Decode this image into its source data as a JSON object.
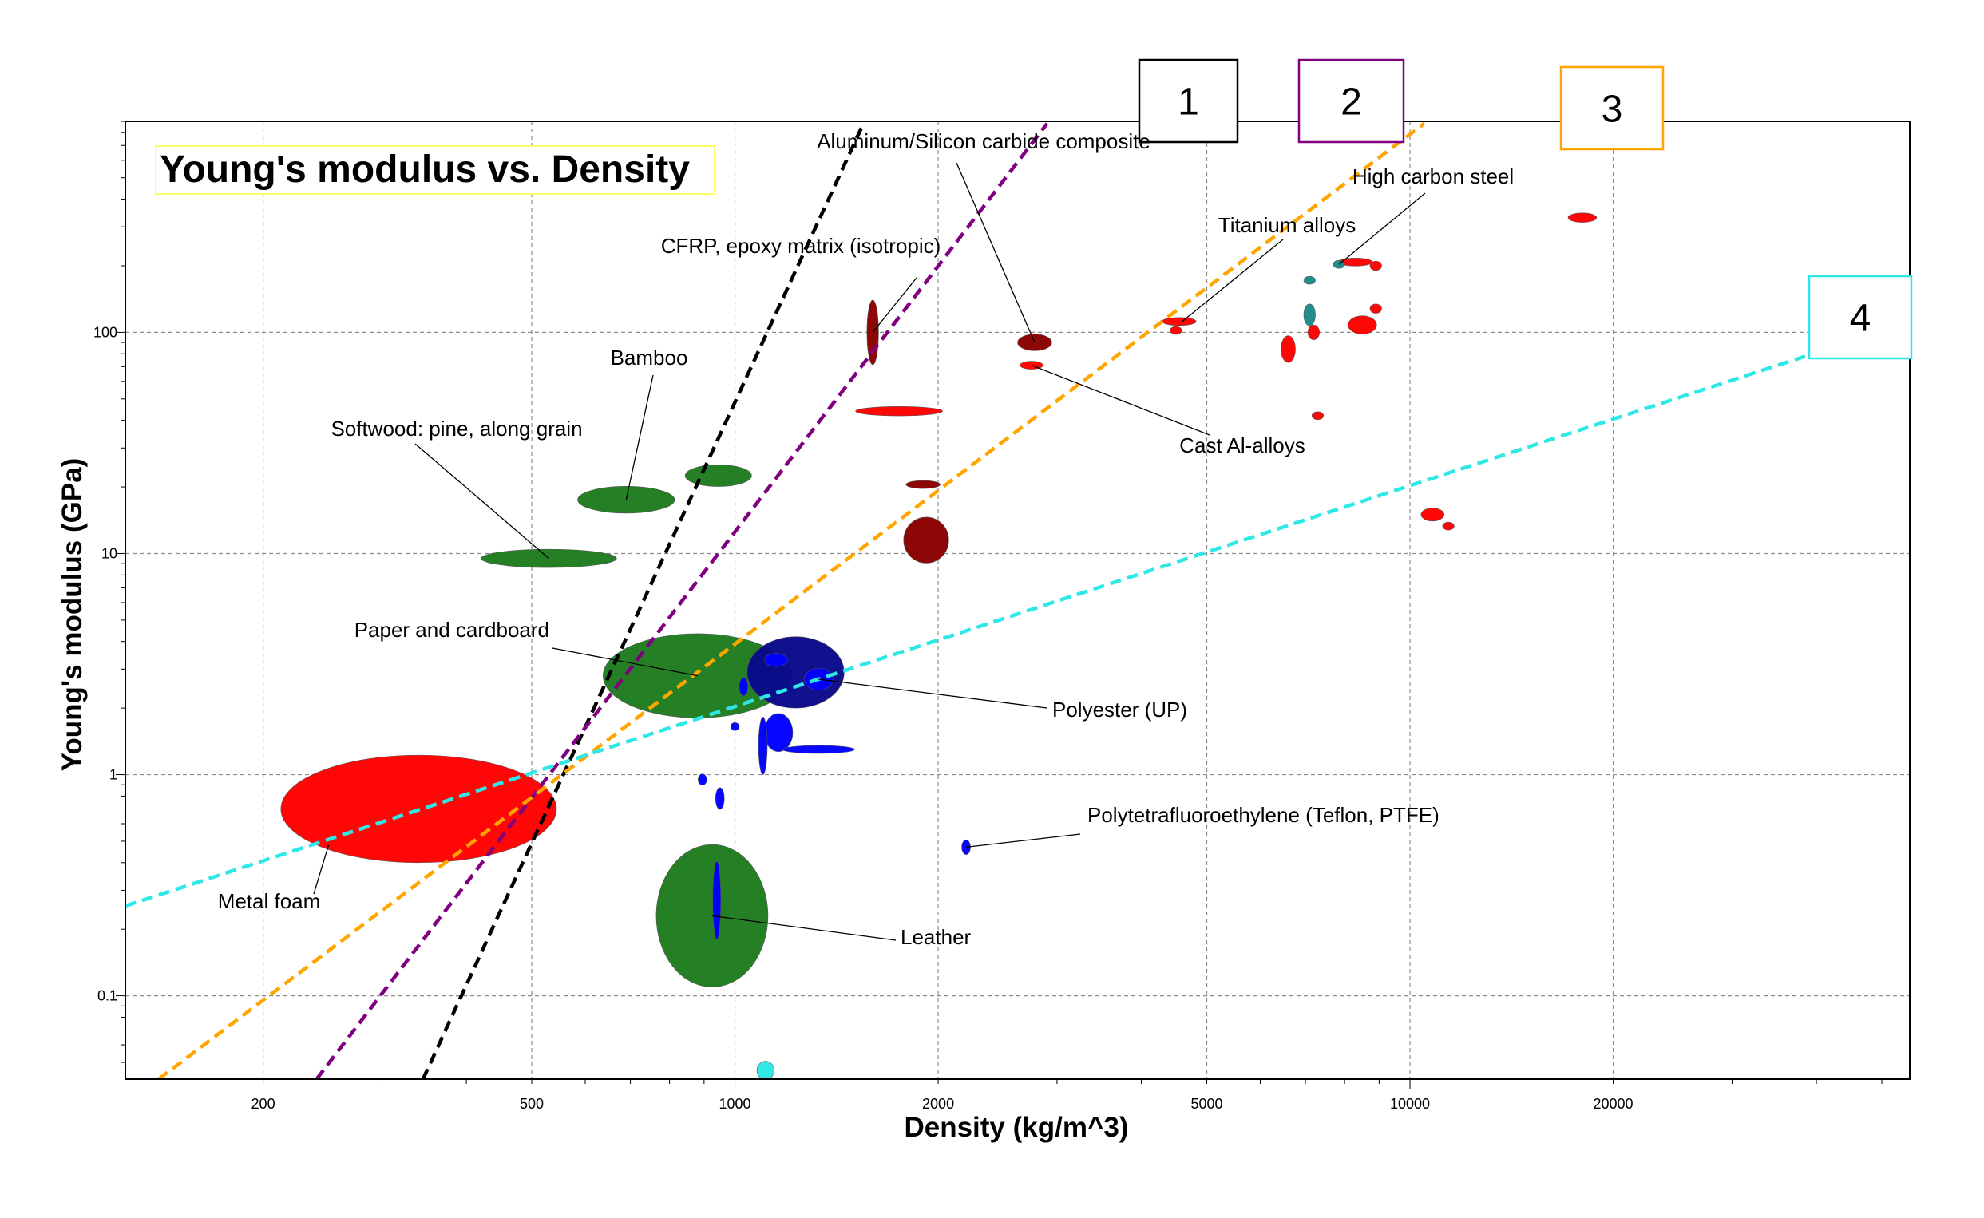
{
  "chart_data": {
    "type": "scatter",
    "title": "Young's modulus vs. Density",
    "xlabel": "Density (kg/m^3)",
    "ylabel": "Young's modulus (GPa)",
    "x_scale": "log",
    "y_scale": "log",
    "xlim": [
      125,
      55000
    ],
    "ylim": [
      0.042,
      900
    ],
    "grid": true,
    "x_ticks": [
      {
        "value": 200,
        "label": "200"
      },
      {
        "value": 500,
        "label": "500"
      },
      {
        "value": 1000,
        "label": "1000"
      },
      {
        "value": 2000,
        "label": "2000"
      },
      {
        "value": 5000,
        "label": "5000"
      },
      {
        "value": 10000,
        "label": "10000"
      },
      {
        "value": 20000,
        "label": "20000"
      }
    ],
    "y_ticks": [
      {
        "value": 0.1,
        "label": "0.1"
      },
      {
        "value": 1,
        "label": "1"
      },
      {
        "value": 10,
        "label": "10"
      },
      {
        "value": 100,
        "label": "100"
      }
    ],
    "colors": {
      "green": "#1e7b1e",
      "red": "#ff0000",
      "darkred": "#8b0000",
      "blue": "#0000ff",
      "navy": "#0a0a8c",
      "teal": "#1a8a8a",
      "cyan": "#2ee8e8"
    },
    "bubbles": [
      {
        "x": 340,
        "y": 0.7,
        "rx": 1.6,
        "ry": 1.75,
        "color": "red"
      },
      {
        "x": 530,
        "y": 9.5,
        "rx": 1.26,
        "ry": 1.1,
        "color": "green"
      },
      {
        "x": 690,
        "y": 17.5,
        "rx": 1.18,
        "ry": 1.15,
        "color": "green"
      },
      {
        "x": 945,
        "y": 22.5,
        "rx": 1.12,
        "ry": 1.12,
        "color": "green"
      },
      {
        "x": 880,
        "y": 2.8,
        "rx": 1.38,
        "ry": 1.55,
        "color": "green"
      },
      {
        "x": 925,
        "y": 0.23,
        "rx": 1.21,
        "ry": 2.1,
        "color": "green"
      },
      {
        "x": 1230,
        "y": 2.9,
        "rx": 1.18,
        "ry": 1.45,
        "color": "navy"
      },
      {
        "x": 1150,
        "y": 3.3,
        "rx": 1.04,
        "ry": 1.07,
        "color": "blue"
      },
      {
        "x": 1330,
        "y": 2.7,
        "rx": 1.05,
        "ry": 1.12,
        "color": "blue"
      },
      {
        "x": 1160,
        "y": 1.55,
        "rx": 1.05,
        "ry": 1.22,
        "color": "blue"
      },
      {
        "x": 1330,
        "y": 1.3,
        "rx": 1.13,
        "ry": 1.03,
        "color": "blue"
      },
      {
        "x": 1100,
        "y": 1.35,
        "rx": 1.015,
        "ry": 1.35,
        "color": "blue"
      },
      {
        "x": 1000,
        "y": 1.65,
        "rx": 1.015,
        "ry": 1.03,
        "color": "blue"
      },
      {
        "x": 1030,
        "y": 2.5,
        "rx": 1.015,
        "ry": 1.1,
        "color": "blue"
      },
      {
        "x": 895,
        "y": 0.95,
        "rx": 1.015,
        "ry": 1.06,
        "color": "blue"
      },
      {
        "x": 950,
        "y": 0.78,
        "rx": 1.015,
        "ry": 1.12,
        "color": "blue"
      },
      {
        "x": 940,
        "y": 0.27,
        "rx": 1.01,
        "ry": 1.5,
        "color": "blue"
      },
      {
        "x": 2200,
        "y": 0.47,
        "rx": 1.015,
        "ry": 1.08,
        "color": "blue"
      },
      {
        "x": 1110,
        "y": 0.046,
        "rx": 1.03,
        "ry": 1.1,
        "color": "cyan"
      },
      {
        "x": 1600,
        "y": 100,
        "rx": 1.02,
        "ry": 1.4,
        "color": "darkred"
      },
      {
        "x": 1750,
        "y": 44,
        "rx": 1.16,
        "ry": 1.05,
        "color": "red"
      },
      {
        "x": 1900,
        "y": 20.5,
        "rx": 1.06,
        "ry": 1.03,
        "color": "darkred"
      },
      {
        "x": 1920,
        "y": 11.5,
        "rx": 1.08,
        "ry": 1.27,
        "color": "darkred"
      },
      {
        "x": 2780,
        "y": 90,
        "rx": 1.06,
        "ry": 1.09,
        "color": "darkred"
      },
      {
        "x": 2750,
        "y": 71,
        "rx": 1.04,
        "ry": 1.04,
        "color": "red"
      },
      {
        "x": 4550,
        "y": 112,
        "rx": 1.06,
        "ry": 1.03,
        "color": "red"
      },
      {
        "x": 4500,
        "y": 102,
        "rx": 1.02,
        "ry": 1.02,
        "color": "red"
      },
      {
        "x": 6600,
        "y": 84,
        "rx": 1.025,
        "ry": 1.15,
        "color": "red"
      },
      {
        "x": 7200,
        "y": 100,
        "rx": 1.02,
        "ry": 1.08,
        "color": "red"
      },
      {
        "x": 7100,
        "y": 120,
        "rx": 1.02,
        "ry": 1.12,
        "color": "teal"
      },
      {
        "x": 7100,
        "y": 172,
        "rx": 1.02,
        "ry": 1.03,
        "color": "teal"
      },
      {
        "x": 7300,
        "y": 42,
        "rx": 1.02,
        "ry": 1.03,
        "color": "red"
      },
      {
        "x": 8500,
        "y": 108,
        "rx": 1.05,
        "ry": 1.1,
        "color": "red"
      },
      {
        "x": 8900,
        "y": 128,
        "rx": 1.02,
        "ry": 1.05,
        "color": "red"
      },
      {
        "x": 8300,
        "y": 208,
        "rx": 1.06,
        "ry": 1.02,
        "color": "red"
      },
      {
        "x": 8900,
        "y": 200,
        "rx": 1.02,
        "ry": 1.05,
        "color": "red"
      },
      {
        "x": 7850,
        "y": 203,
        "rx": 1.02,
        "ry": 1.04,
        "color": "teal"
      },
      {
        "x": 10800,
        "y": 15,
        "rx": 1.04,
        "ry": 1.07,
        "color": "red"
      },
      {
        "x": 11400,
        "y": 13.3,
        "rx": 1.02,
        "ry": 1.03,
        "color": "red"
      },
      {
        "x": 18000,
        "y": 330,
        "rx": 1.05,
        "ry": 1.05,
        "color": "red"
      }
    ],
    "guide_lines": [
      {
        "label": "1",
        "color": "#000000",
        "points": [
          [
            345,
            0.042
          ],
          [
            1550,
            880
          ]
        ]
      },
      {
        "label": "2",
        "color": "#800080",
        "points": [
          [
            240,
            0.042
          ],
          [
            2900,
            880
          ]
        ]
      },
      {
        "label": "3",
        "color": "#ffa500",
        "points": [
          [
            140,
            0.042
          ],
          [
            10500,
            880
          ]
        ]
      },
      {
        "label": "4",
        "color": "#2ee8e8",
        "points": [
          [
            125,
            0.255
          ],
          [
            42000,
            85
          ]
        ]
      }
    ],
    "annotations": [
      {
        "text": "Aluminum/Silicon carbide composite",
        "x": 2780,
        "y": 90
      },
      {
        "text": "High carbon steel",
        "x": 7850,
        "y": 203
      },
      {
        "text": "Titanium alloys",
        "x": 4600,
        "y": 112
      },
      {
        "text": "CFRP, epoxy matrix (isotropic)",
        "x": 1600,
        "y": 100
      },
      {
        "text": "Bamboo",
        "x": 690,
        "y": 17.5
      },
      {
        "text": "Softwood: pine, along grain",
        "x": 530,
        "y": 9.5
      },
      {
        "text": "Cast Al-alloys",
        "x": 2750,
        "y": 71
      },
      {
        "text": "Paper and cardboard",
        "x": 880,
        "y": 2.8
      },
      {
        "text": "Polyester (UP)",
        "x": 1330,
        "y": 2.7
      },
      {
        "text": "Polytetrafluoroethylene (Teflon, PTFE)",
        "x": 2200,
        "y": 0.47
      },
      {
        "text": "Metal foam",
        "x": 250,
        "y": 0.48
      },
      {
        "text": "Leather",
        "x": 925,
        "y": 0.23
      }
    ]
  }
}
